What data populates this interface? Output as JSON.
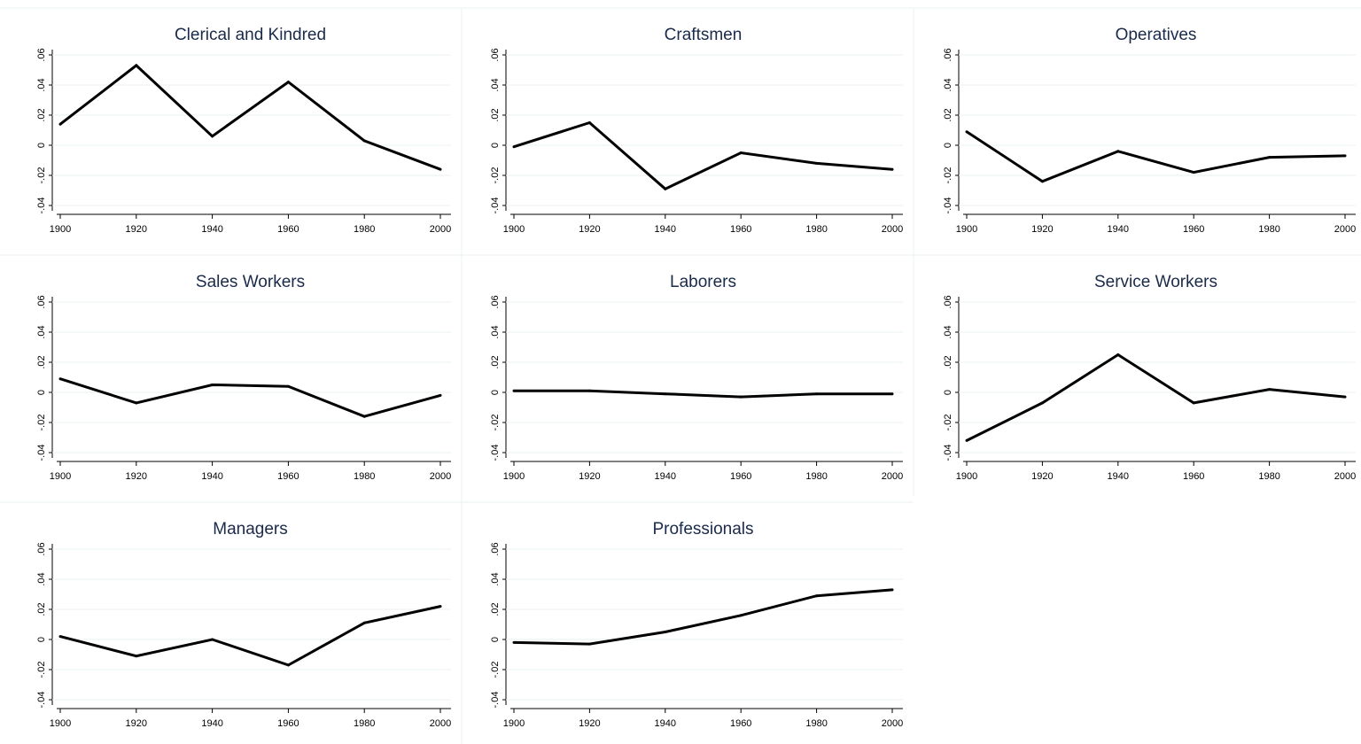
{
  "chart_data": [
    {
      "type": "line",
      "title": "Clerical and Kindred",
      "x": [
        1900,
        1920,
        1940,
        1960,
        1980,
        2000
      ],
      "y": [
        0.014,
        0.053,
        0.006,
        0.042,
        0.003,
        -0.016
      ],
      "xticks": [
        "1900",
        "1920",
        "1940",
        "1960",
        "1980",
        "2000"
      ],
      "yticks": [
        "-.04",
        "-.02",
        "0",
        ".02",
        ".04",
        ".06"
      ],
      "xlim": [
        1900,
        2000
      ],
      "ylim": [
        -0.04,
        0.06
      ],
      "grid": true
    },
    {
      "type": "line",
      "title": "Craftsmen",
      "x": [
        1900,
        1920,
        1940,
        1960,
        1980,
        2000
      ],
      "y": [
        -0.001,
        0.015,
        -0.029,
        -0.005,
        -0.012,
        -0.016
      ],
      "xticks": [
        "1900",
        "1920",
        "1940",
        "1960",
        "1980",
        "2000"
      ],
      "yticks": [
        "-.04",
        "-.02",
        "0",
        ".02",
        ".04",
        ".06"
      ],
      "xlim": [
        1900,
        2000
      ],
      "ylim": [
        -0.04,
        0.06
      ],
      "grid": true
    },
    {
      "type": "line",
      "title": "Operatives",
      "x": [
        1900,
        1920,
        1940,
        1960,
        1980,
        2000
      ],
      "y": [
        0.009,
        -0.024,
        -0.004,
        -0.018,
        -0.008,
        -0.007
      ],
      "xticks": [
        "1900",
        "1920",
        "1940",
        "1960",
        "1980",
        "2000"
      ],
      "yticks": [
        "-.04",
        "-.02",
        "0",
        ".02",
        ".04",
        ".06"
      ],
      "xlim": [
        1900,
        2000
      ],
      "ylim": [
        -0.04,
        0.06
      ],
      "grid": true
    },
    {
      "type": "line",
      "title": "Sales Workers",
      "x": [
        1900,
        1920,
        1940,
        1960,
        1980,
        2000
      ],
      "y": [
        0.009,
        -0.007,
        0.005,
        0.004,
        -0.016,
        -0.002
      ],
      "xticks": [
        "1900",
        "1920",
        "1940",
        "1960",
        "1980",
        "2000"
      ],
      "yticks": [
        "-.04",
        "-.02",
        "0",
        ".02",
        ".04",
        ".06"
      ],
      "xlim": [
        1900,
        2000
      ],
      "ylim": [
        -0.04,
        0.06
      ],
      "grid": true
    },
    {
      "type": "line",
      "title": "Laborers",
      "x": [
        1900,
        1920,
        1940,
        1960,
        1980,
        2000
      ],
      "y": [
        0.001,
        0.001,
        -0.001,
        -0.003,
        -0.001,
        -0.001
      ],
      "xticks": [
        "1900",
        "1920",
        "1940",
        "1960",
        "1980",
        "2000"
      ],
      "yticks": [
        "-.04",
        "-.02",
        "0",
        ".02",
        ".04",
        ".06"
      ],
      "xlim": [
        1900,
        2000
      ],
      "ylim": [
        -0.04,
        0.06
      ],
      "grid": true
    },
    {
      "type": "line",
      "title": "Service Workers",
      "x": [
        1900,
        1920,
        1940,
        1960,
        1980,
        2000
      ],
      "y": [
        -0.032,
        -0.007,
        0.025,
        -0.007,
        0.002,
        -0.003
      ],
      "xticks": [
        "1900",
        "1920",
        "1940",
        "1960",
        "1980",
        "2000"
      ],
      "yticks": [
        "-.04",
        "-.02",
        "0",
        ".02",
        ".04",
        ".06"
      ],
      "xlim": [
        1900,
        2000
      ],
      "ylim": [
        -0.04,
        0.06
      ],
      "grid": true
    },
    {
      "type": "line",
      "title": "Managers",
      "x": [
        1900,
        1920,
        1940,
        1960,
        1980,
        2000
      ],
      "y": [
        0.002,
        -0.011,
        0.0,
        -0.017,
        0.011,
        0.022
      ],
      "xticks": [
        "1900",
        "1920",
        "1940",
        "1960",
        "1980",
        "2000"
      ],
      "yticks": [
        "-.04",
        "-.02",
        "0",
        ".02",
        ".04",
        ".06"
      ],
      "xlim": [
        1900,
        2000
      ],
      "ylim": [
        -0.04,
        0.06
      ],
      "grid": true
    },
    {
      "type": "line",
      "title": "Professionals",
      "x": [
        1900,
        1920,
        1940,
        1960,
        1980,
        2000
      ],
      "y": [
        -0.002,
        -0.003,
        0.005,
        0.016,
        0.029,
        0.033
      ],
      "xticks": [
        "1900",
        "1920",
        "1940",
        "1960",
        "1980",
        "2000"
      ],
      "yticks": [
        "-.04",
        "-.02",
        "0",
        ".02",
        ".04",
        ".06"
      ],
      "xlim": [
        1900,
        2000
      ],
      "ylim": [
        -0.04,
        0.06
      ],
      "grid": true
    }
  ],
  "style": {
    "background": "#ffffff",
    "line_color": "#000000",
    "grid_color": "#eaf2f3",
    "title_color": "#1a2a4a",
    "separator_color": "#eaf2f3"
  }
}
